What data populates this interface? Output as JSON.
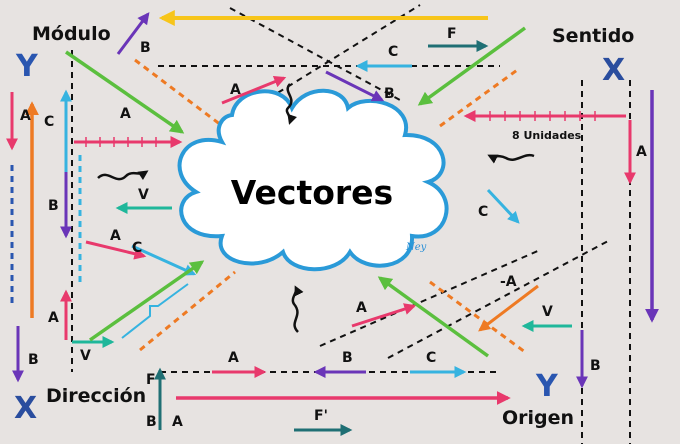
{
  "title": "Vectores",
  "signature": "Ney",
  "corners": {
    "top_left": "Módulo",
    "top_right": "Sentido",
    "bottom_left": "Dirección",
    "bottom_right": "Origen"
  },
  "axes": {
    "top_left_y": "Y",
    "top_right_x": "X",
    "bottom_left_x": "X",
    "bottom_right_y": "Y"
  },
  "units_label": "8 Unidades",
  "vector_labels": {
    "b_top": "B",
    "f_top": "F",
    "c_top": "C",
    "a_top": "A",
    "b_mid_top": "B",
    "a_left_top": "A",
    "a_left_vert": "A",
    "c_left_vert": "C",
    "b_left_vert": "B",
    "v_left": "V",
    "a_left_mid": "A",
    "c_left_mid": "C",
    "a_left_low": "A",
    "b_left_low": "B",
    "v_left_low": "V",
    "a_right_vert": "A",
    "c_right": "C",
    "neg_a_right": "-A",
    "v_right": "V",
    "a_center_low": "A",
    "b_right_low": "B",
    "a_bottom": "A",
    "b_bottom": "B",
    "c_bottom": "C",
    "b_bottom_left": "B",
    "f_bottom_left": "F",
    "a_bottom_left": "A",
    "f_prime_bottom": "F'"
  },
  "colors": {
    "background": "#e7e3e1",
    "cloud_fill": "#ffffff",
    "cloud_stroke": "#2a9ad8",
    "pink": "#e8396c",
    "purple": "#6a35b8",
    "green": "#5bbf3e",
    "blue_light": "#36b3e0",
    "orange": "#ee7a23",
    "yellow": "#f7c51a",
    "teal": "#1f6f74",
    "navy": "#2a4d9e",
    "axis_blue": "#2a56b0"
  }
}
